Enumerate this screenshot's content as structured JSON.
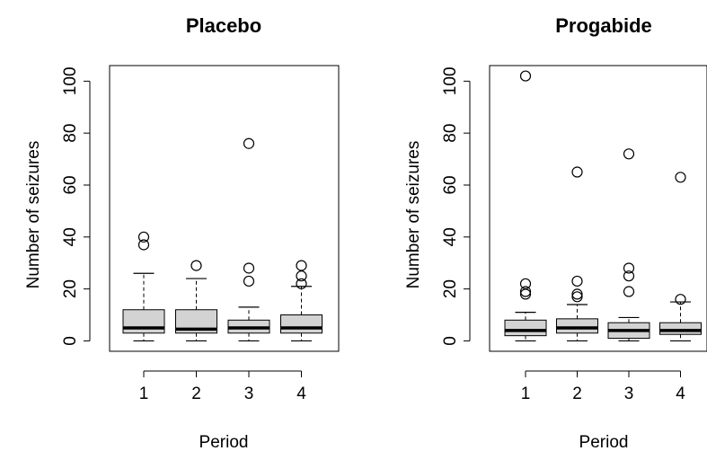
{
  "chart_data": [
    {
      "type": "boxplot",
      "title": "Placebo",
      "xlabel": "Period",
      "ylabel": "Number of seizures",
      "ylim": [
        -4,
        106
      ],
      "yticks": [
        0,
        20,
        40,
        60,
        80,
        100
      ],
      "categories": [
        "1",
        "2",
        "3",
        "4"
      ],
      "box_color": "#d3d3d3",
      "boxes": [
        {
          "category": "1",
          "whisker_low": 0,
          "q1": 3,
          "median": 5,
          "q3": 12,
          "whisker_high": 26,
          "outliers": [
            37,
            40
          ]
        },
        {
          "category": "2",
          "whisker_low": 0,
          "q1": 3,
          "median": 4.5,
          "q3": 12,
          "whisker_high": 24,
          "outliers": [
            29
          ]
        },
        {
          "category": "3",
          "whisker_low": 0,
          "q1": 3,
          "median": 5,
          "q3": 8,
          "whisker_high": 13,
          "outliers": [
            23,
            28,
            76
          ]
        },
        {
          "category": "4",
          "whisker_low": 0,
          "q1": 3,
          "median": 5,
          "q3": 10,
          "whisker_high": 21,
          "outliers": [
            22,
            25,
            29
          ]
        }
      ]
    },
    {
      "type": "boxplot",
      "title": "Progabide",
      "xlabel": "Period",
      "ylabel": "Number of seizures",
      "ylim": [
        -4,
        106
      ],
      "yticks": [
        0,
        20,
        40,
        60,
        80,
        100
      ],
      "categories": [
        "1",
        "2",
        "3",
        "4"
      ],
      "box_color": "#d3d3d3",
      "boxes": [
        {
          "category": "1",
          "whisker_low": 0,
          "q1": 2,
          "median": 4,
          "q3": 8,
          "whisker_high": 11,
          "outliers": [
            18,
            19,
            22,
            102
          ]
        },
        {
          "category": "2",
          "whisker_low": 0,
          "q1": 3,
          "median": 5,
          "q3": 8.5,
          "whisker_high": 14,
          "outliers": [
            17,
            18,
            23,
            65
          ]
        },
        {
          "category": "3",
          "whisker_low": 0,
          "q1": 1,
          "median": 4,
          "q3": 7,
          "whisker_high": 9,
          "outliers": [
            19,
            25,
            28,
            72
          ]
        },
        {
          "category": "4",
          "whisker_low": 0,
          "q1": 2.5,
          "median": 4,
          "q3": 7,
          "whisker_high": 15,
          "outliers": [
            16,
            63
          ]
        }
      ]
    }
  ]
}
